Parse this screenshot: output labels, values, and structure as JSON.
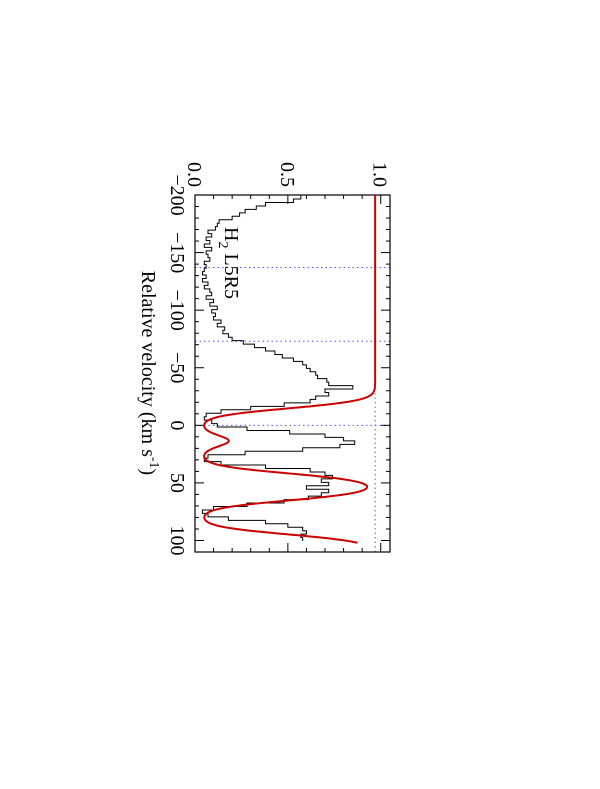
{
  "chart_data": {
    "type": "line",
    "orientation": "rotated-90-clockwise",
    "xlabel": "Relative velocity (km s",
    "xlabel_sup": "-1",
    "xlabel_close": ")",
    "annotation": {
      "text_main": "H",
      "text_sub": "2",
      "text_rest": " L5R5"
    },
    "xlim": [
      -200,
      110
    ],
    "ylim": [
      0.0,
      1.05
    ],
    "x_ticks": [
      -200,
      -150,
      -100,
      -50,
      0,
      50,
      100
    ],
    "x_tick_labels": [
      "−200",
      "−150",
      "−100",
      "−50",
      "0",
      "50",
      "100"
    ],
    "y_ticks": [
      0.0,
      0.5,
      1.0
    ],
    "y_tick_labels": [
      "0.0",
      "0.5",
      "1.0"
    ],
    "reference_lines": {
      "continuum": 0.97,
      "zero": 0.0,
      "component_velocities": [
        -137,
        -73,
        0
      ]
    },
    "series": [
      {
        "kind": "data-histogram",
        "color": "#000000",
        "x": [
          -198,
          -195,
          -192,
          -189,
          -186,
          -183,
          -180,
          -177,
          -174,
          -171,
          -168,
          -165,
          -162,
          -159,
          -156,
          -153,
          -150,
          -147,
          -144,
          -141,
          -138,
          -135,
          -132,
          -129,
          -126,
          -123,
          -120,
          -117,
          -114,
          -111,
          -108,
          -105,
          -102,
          -99,
          -96,
          -93,
          -90,
          -87,
          -84,
          -81,
          -78,
          -75,
          -72,
          -69,
          -66,
          -63,
          -60,
          -57,
          -54,
          -51,
          -48,
          -45,
          -42,
          -39,
          -36,
          -33,
          -30,
          -27,
          -24,
          -21,
          -18,
          -15,
          -12,
          -9,
          -6,
          -3,
          0,
          3,
          6,
          9,
          12,
          15,
          18,
          21,
          24,
          27,
          30,
          33,
          36,
          39,
          42,
          45,
          48,
          51,
          54,
          57,
          60,
          63,
          66,
          69,
          72,
          75,
          78,
          81,
          84,
          87,
          90,
          93,
          96,
          99
        ],
        "y": [
          0.57,
          0.53,
          0.38,
          0.33,
          0.27,
          0.24,
          0.2,
          0.13,
          0.12,
          0.11,
          0.07,
          0.09,
          0.06,
          0.08,
          0.05,
          0.09,
          0.06,
          0.07,
          0.08,
          0.05,
          0.06,
          0.05,
          0.04,
          0.06,
          0.04,
          0.07,
          0.05,
          0.08,
          0.09,
          0.06,
          0.1,
          0.08,
          0.12,
          0.09,
          0.11,
          0.1,
          0.14,
          0.12,
          0.16,
          0.15,
          0.18,
          0.2,
          0.26,
          0.32,
          0.38,
          0.43,
          0.47,
          0.53,
          0.58,
          0.6,
          0.62,
          0.65,
          0.66,
          0.71,
          0.72,
          0.85,
          0.7,
          0.72,
          0.65,
          0.62,
          0.48,
          0.3,
          0.14,
          0.06,
          0.05,
          0.09,
          0.12,
          0.28,
          0.51,
          0.7,
          0.8,
          0.86,
          0.78,
          0.58,
          0.27,
          0.07,
          0.05,
          0.14,
          0.38,
          0.62,
          0.7,
          0.74,
          0.68,
          0.72,
          0.6,
          0.72,
          0.68,
          0.61,
          0.48,
          0.28,
          0.1,
          0.04,
          0.07,
          0.18,
          0.38,
          0.5,
          0.58,
          0.6,
          0.57,
          0.58
        ]
      },
      {
        "kind": "model-fit",
        "color": "#cc0000",
        "continuum": 0.97,
        "components": [
          {
            "center": 0,
            "depth": 0.92,
            "width": 12
          },
          {
            "center": 27,
            "depth": 0.92,
            "width": 12
          },
          {
            "center": 80,
            "depth": 0.92,
            "width": 12
          }
        ],
        "x_start": -200,
        "x_end": 102
      }
    ]
  }
}
